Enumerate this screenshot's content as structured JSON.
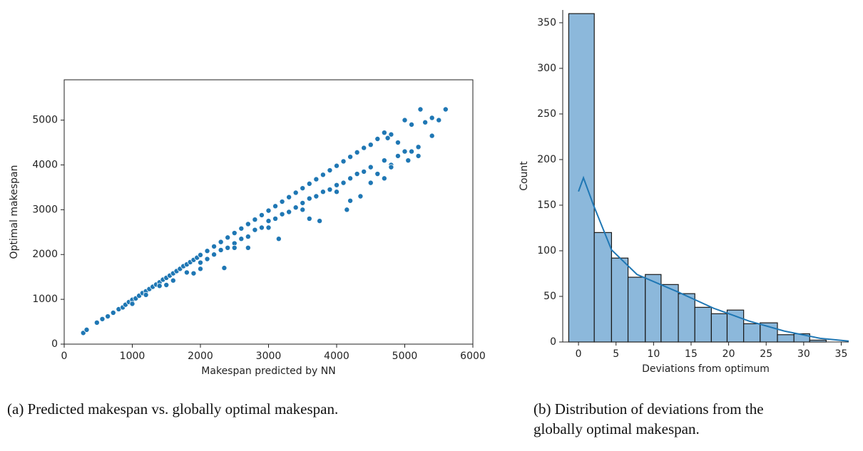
{
  "chart_data": [
    {
      "type": "scatter",
      "xlabel": "Makespan predicted by NN",
      "ylabel": "Optimal makespan",
      "caption": [
        "(a) Predicted makespan vs. globally optimal makespan."
      ],
      "color": "#1f77b4",
      "xlim": [
        0,
        6000
      ],
      "ylim": [
        0,
        5900
      ],
      "xticks": [
        0,
        1000,
        2000,
        3000,
        4000,
        5000,
        6000
      ],
      "yticks": [
        0,
        1000,
        2000,
        3000,
        4000,
        5000
      ],
      "x": [
        280,
        330,
        480,
        560,
        640,
        720,
        800,
        860,
        900,
        950,
        1000,
        1050,
        1100,
        1150,
        1200,
        1250,
        1300,
        1350,
        1400,
        1450,
        1500,
        1550,
        1600,
        1650,
        1700,
        1750,
        1800,
        1850,
        1900,
        1950,
        2000,
        2100,
        2200,
        2300,
        2400,
        2500,
        2600,
        2700,
        2800,
        2900,
        3000,
        3100,
        3200,
        3300,
        3400,
        3500,
        3600,
        3700,
        3800,
        3900,
        4000,
        4100,
        4200,
        4300,
        4400,
        4500,
        4600,
        4700,
        4800,
        1000,
        1200,
        1400,
        1600,
        1800,
        1900,
        2000,
        2100,
        2200,
        2300,
        2350,
        2400,
        2500,
        2600,
        2700,
        2800,
        2900,
        3000,
        3100,
        3150,
        3200,
        3300,
        3400,
        3500,
        3600,
        3700,
        3750,
        3800,
        3900,
        4000,
        4100,
        4150,
        4200,
        4300,
        4400,
        4500,
        4600,
        4700,
        4800,
        4350,
        3600,
        2700,
        2000,
        1500,
        2500,
        3000,
        3500,
        4000,
        4500,
        4800,
        4200,
        4700,
        4900,
        5000,
        5050,
        5100,
        5200,
        5200,
        5000,
        5100,
        5230,
        5300,
        5400,
        5400,
        5500,
        5600,
        4900,
        4750
      ],
      "y": [
        250,
        320,
        480,
        560,
        620,
        700,
        780,
        820,
        880,
        940,
        990,
        1020,
        1080,
        1140,
        1180,
        1230,
        1280,
        1330,
        1380,
        1440,
        1480,
        1530,
        1580,
        1630,
        1680,
        1740,
        1780,
        1830,
        1880,
        1930,
        1990,
        2080,
        2180,
        2280,
        2380,
        2480,
        2580,
        2680,
        2780,
        2880,
        2980,
        3080,
        3180,
        3280,
        3380,
        3480,
        3580,
        3680,
        3780,
        3880,
        3980,
        4080,
        4180,
        4280,
        4380,
        4450,
        4580,
        4720,
        4680,
        900,
        1100,
        1300,
        1420,
        1600,
        1580,
        1820,
        1900,
        2000,
        2100,
        1700,
        2150,
        2250,
        2350,
        2400,
        2550,
        2600,
        2750,
        2800,
        2350,
        2900,
        2950,
        3050,
        3150,
        3250,
        3300,
        2750,
        3400,
        3450,
        3550,
        3600,
        3000,
        3700,
        3800,
        3850,
        3950,
        3800,
        4100,
        4000,
        3300,
        2800,
        2150,
        1680,
        1320,
        2150,
        2600,
        3000,
        3400,
        3600,
        3950,
        3200,
        3700,
        4500,
        4300,
        4100,
        4300,
        4400,
        4200,
        5000,
        4900,
        5240,
        4950,
        5050,
        4650,
        5000,
        5240,
        4200,
        4600
      ]
    },
    {
      "type": "histogram",
      "xlabel": "Deviations from optimum",
      "ylabel": "Count",
      "caption": [
        "(b) Distribution of deviations from the",
        "globally optimal makespan."
      ],
      "color": "#8cb8db",
      "edgecolor": "#1a1a1a",
      "kde_color": "#1f77b4",
      "xlim": [
        -2.1,
        36
      ],
      "ylim": [
        0,
        364
      ],
      "xticks": [
        0,
        5,
        10,
        15,
        20,
        25,
        30,
        35
      ],
      "yticks": [
        0,
        50,
        100,
        150,
        200,
        250,
        300,
        350
      ],
      "bins": [
        -1.3,
        2.1,
        4.4,
        6.6,
        8.9,
        11.0,
        13.3,
        15.5,
        17.7,
        19.8,
        22.0,
        24.2,
        26.5,
        28.7,
        30.8,
        33.0
      ],
      "counts": [
        360,
        120,
        92,
        71,
        74,
        63,
        53,
        38,
        31,
        35,
        20,
        21,
        8,
        9,
        2
      ],
      "kde": {
        "x": [
          0,
          0.66,
          2,
          4.4,
          7.8,
          13.2,
          18,
          22.7,
          27.4,
          32.2,
          36
        ],
        "y": [
          165,
          180,
          150,
          101,
          74,
          55,
          37,
          23,
          12,
          4,
          1
        ]
      }
    }
  ]
}
